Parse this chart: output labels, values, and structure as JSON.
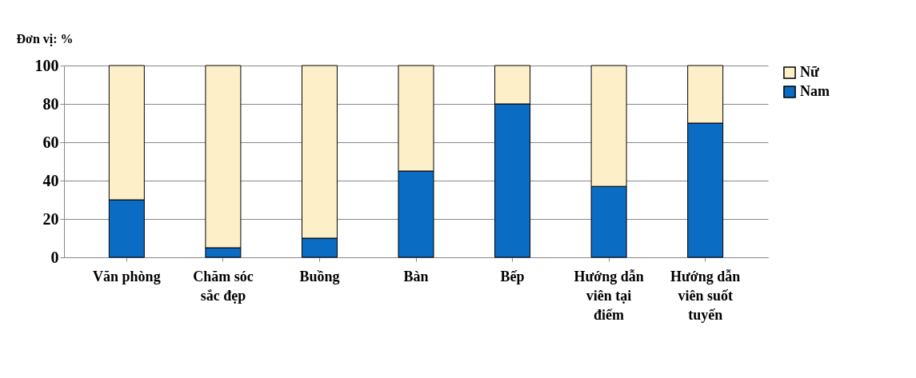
{
  "chart_data": {
    "type": "bar",
    "stacked": true,
    "ylabel": "Đơn vị: %",
    "categories": [
      "Văn phòng",
      "Chăm sóc sắc đẹp",
      "Buồng",
      "Bàn",
      "Bếp",
      "Hướng dẫn viên tại điểm",
      "Hướng dẫn viên suốt tuyến"
    ],
    "series": [
      {
        "name": "Nam",
        "color": "#0b6cc4",
        "values": [
          30,
          5,
          10,
          45,
          80,
          37,
          70
        ]
      },
      {
        "name": "Nữ",
        "color": "#fdf0c8",
        "values": [
          70,
          95,
          90,
          55,
          20,
          63,
          30
        ]
      }
    ],
    "ylim": [
      0,
      100
    ],
    "yticks": [
      0,
      20,
      40,
      60,
      80,
      100
    ],
    "grid": "y",
    "legend": "right"
  }
}
